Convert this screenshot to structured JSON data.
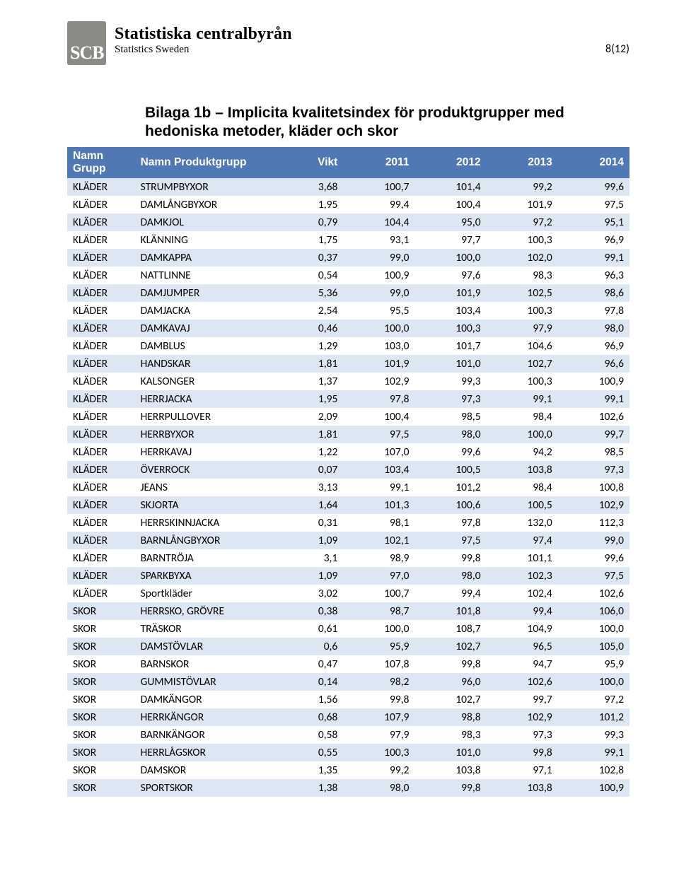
{
  "page_number": "8(12)",
  "logo_text": "SCB",
  "org_line1": "Statistiska centralbyrån",
  "org_line2": "Statistics Sweden",
  "title_line1": "Bilaga 1b – Implicita kvalitetsindex för produktgrupper med",
  "title_line2": "hedoniska metoder, kläder och skor",
  "table": {
    "header_bg": "#5078b4",
    "header_fg": "#ffffff",
    "row_odd_bg": "#dde7f3",
    "row_even_bg": "#ffffff",
    "font_size_pt": 12,
    "columns": [
      "Namn Grupp",
      "Namn Produktgrupp",
      "Vikt",
      "2011",
      "2012",
      "2013",
      "2014"
    ],
    "numeric_cols": [
      false,
      false,
      true,
      true,
      true,
      true,
      true
    ],
    "rows": [
      [
        "KLÄDER",
        "STRUMPBYXOR",
        "3,68",
        "100,7",
        "101,4",
        "99,2",
        "99,6"
      ],
      [
        "KLÄDER",
        "DAMLÅNGBYXOR",
        "1,95",
        "99,4",
        "100,4",
        "101,9",
        "97,5"
      ],
      [
        "KLÄDER",
        "DAMKJOL",
        "0,79",
        "104,4",
        "95,0",
        "97,2",
        "95,1"
      ],
      [
        "KLÄDER",
        "KLÄNNING",
        "1,75",
        "93,1",
        "97,7",
        "100,3",
        "96,9"
      ],
      [
        "KLÄDER",
        "DAMKAPPA",
        "0,37",
        "99,0",
        "100,0",
        "102,0",
        "99,1"
      ],
      [
        "KLÄDER",
        "NATTLINNE",
        "0,54",
        "100,9",
        "97,6",
        "98,3",
        "96,3"
      ],
      [
        "KLÄDER",
        "DAMJUMPER",
        "5,36",
        "99,0",
        "101,9",
        "102,5",
        "98,6"
      ],
      [
        "KLÄDER",
        "DAMJACKA",
        "2,54",
        "95,5",
        "103,4",
        "100,3",
        "97,8"
      ],
      [
        "KLÄDER",
        "DAMKAVAJ",
        "0,46",
        "100,0",
        "100,3",
        "97,9",
        "98,0"
      ],
      [
        "KLÄDER",
        "DAMBLUS",
        "1,29",
        "103,0",
        "101,7",
        "104,6",
        "96,9"
      ],
      [
        "KLÄDER",
        "HANDSKAR",
        "1,81",
        "101,9",
        "101,0",
        "102,7",
        "96,6"
      ],
      [
        "KLÄDER",
        "KALSONGER",
        "1,37",
        "102,9",
        "99,3",
        "100,3",
        "100,9"
      ],
      [
        "KLÄDER",
        "HERRJACKA",
        "1,95",
        "97,8",
        "97,3",
        "99,1",
        "99,1"
      ],
      [
        "KLÄDER",
        "HERRPULLOVER",
        "2,09",
        "100,4",
        "98,5",
        "98,4",
        "102,6"
      ],
      [
        "KLÄDER",
        "HERRBYXOR",
        "1,81",
        "97,5",
        "98,0",
        "100,0",
        "99,7"
      ],
      [
        "KLÄDER",
        "HERRKAVAJ",
        "1,22",
        "107,0",
        "99,6",
        "94,2",
        "98,5"
      ],
      [
        "KLÄDER",
        "ÖVERROCK",
        "0,07",
        "103,4",
        "100,5",
        "103,8",
        "97,3"
      ],
      [
        "KLÄDER",
        "JEANS",
        "3,13",
        "99,1",
        "101,2",
        "98,4",
        "100,8"
      ],
      [
        "KLÄDER",
        "SKJORTA",
        "1,64",
        "101,3",
        "100,6",
        "100,5",
        "102,9"
      ],
      [
        "KLÄDER",
        "HERRSKINNJACKA",
        "0,31",
        "98,1",
        "97,8",
        "132,0",
        "112,3"
      ],
      [
        "KLÄDER",
        "BARNLÅNGBYXOR",
        "1,09",
        "102,1",
        "97,5",
        "97,4",
        "99,0"
      ],
      [
        "KLÄDER",
        "BARNTRÖJA",
        "3,1",
        "98,9",
        "99,8",
        "101,1",
        "99,6"
      ],
      [
        "KLÄDER",
        "SPARKBYXA",
        "1,09",
        "97,0",
        "98,0",
        "102,3",
        "97,5"
      ],
      [
        "KLÄDER",
        "Sportkläder",
        "3,02",
        "100,7",
        "99,4",
        "102,4",
        "102,6"
      ],
      [
        "SKOR",
        "HERRSKO, GRÖVRE",
        "0,38",
        "98,7",
        "101,8",
        "99,4",
        "106,0"
      ],
      [
        "SKOR",
        "TRÄSKOR",
        "0,61",
        "100,0",
        "108,7",
        "104,9",
        "100,0"
      ],
      [
        "SKOR",
        "DAMSTÖVLAR",
        "0,6",
        "95,9",
        "102,7",
        "96,5",
        "105,0"
      ],
      [
        "SKOR",
        "BARNSKOR",
        "0,47",
        "107,8",
        "99,8",
        "94,7",
        "95,9"
      ],
      [
        "SKOR",
        "GUMMISTÖVLAR",
        "0,14",
        "98,2",
        "96,0",
        "102,6",
        "100,0"
      ],
      [
        "SKOR",
        "DAMKÄNGOR",
        "1,56",
        "99,8",
        "102,7",
        "99,7",
        "97,2"
      ],
      [
        "SKOR",
        "HERRKÄNGOR",
        "0,68",
        "107,9",
        "98,8",
        "102,9",
        "101,2"
      ],
      [
        "SKOR",
        "BARNKÄNGOR",
        "0,58",
        "97,9",
        "98,3",
        "97,3",
        "99,3"
      ],
      [
        "SKOR",
        "HERRLÅGSKOR",
        "0,55",
        "100,3",
        "101,0",
        "99,8",
        "99,1"
      ],
      [
        "SKOR",
        "DAMSKOR",
        "1,35",
        "99,2",
        "103,8",
        "97,1",
        "102,8"
      ],
      [
        "SKOR",
        "SPORTSKOR",
        "1,38",
        "98,0",
        "99,8",
        "103,8",
        "100,9"
      ]
    ]
  }
}
